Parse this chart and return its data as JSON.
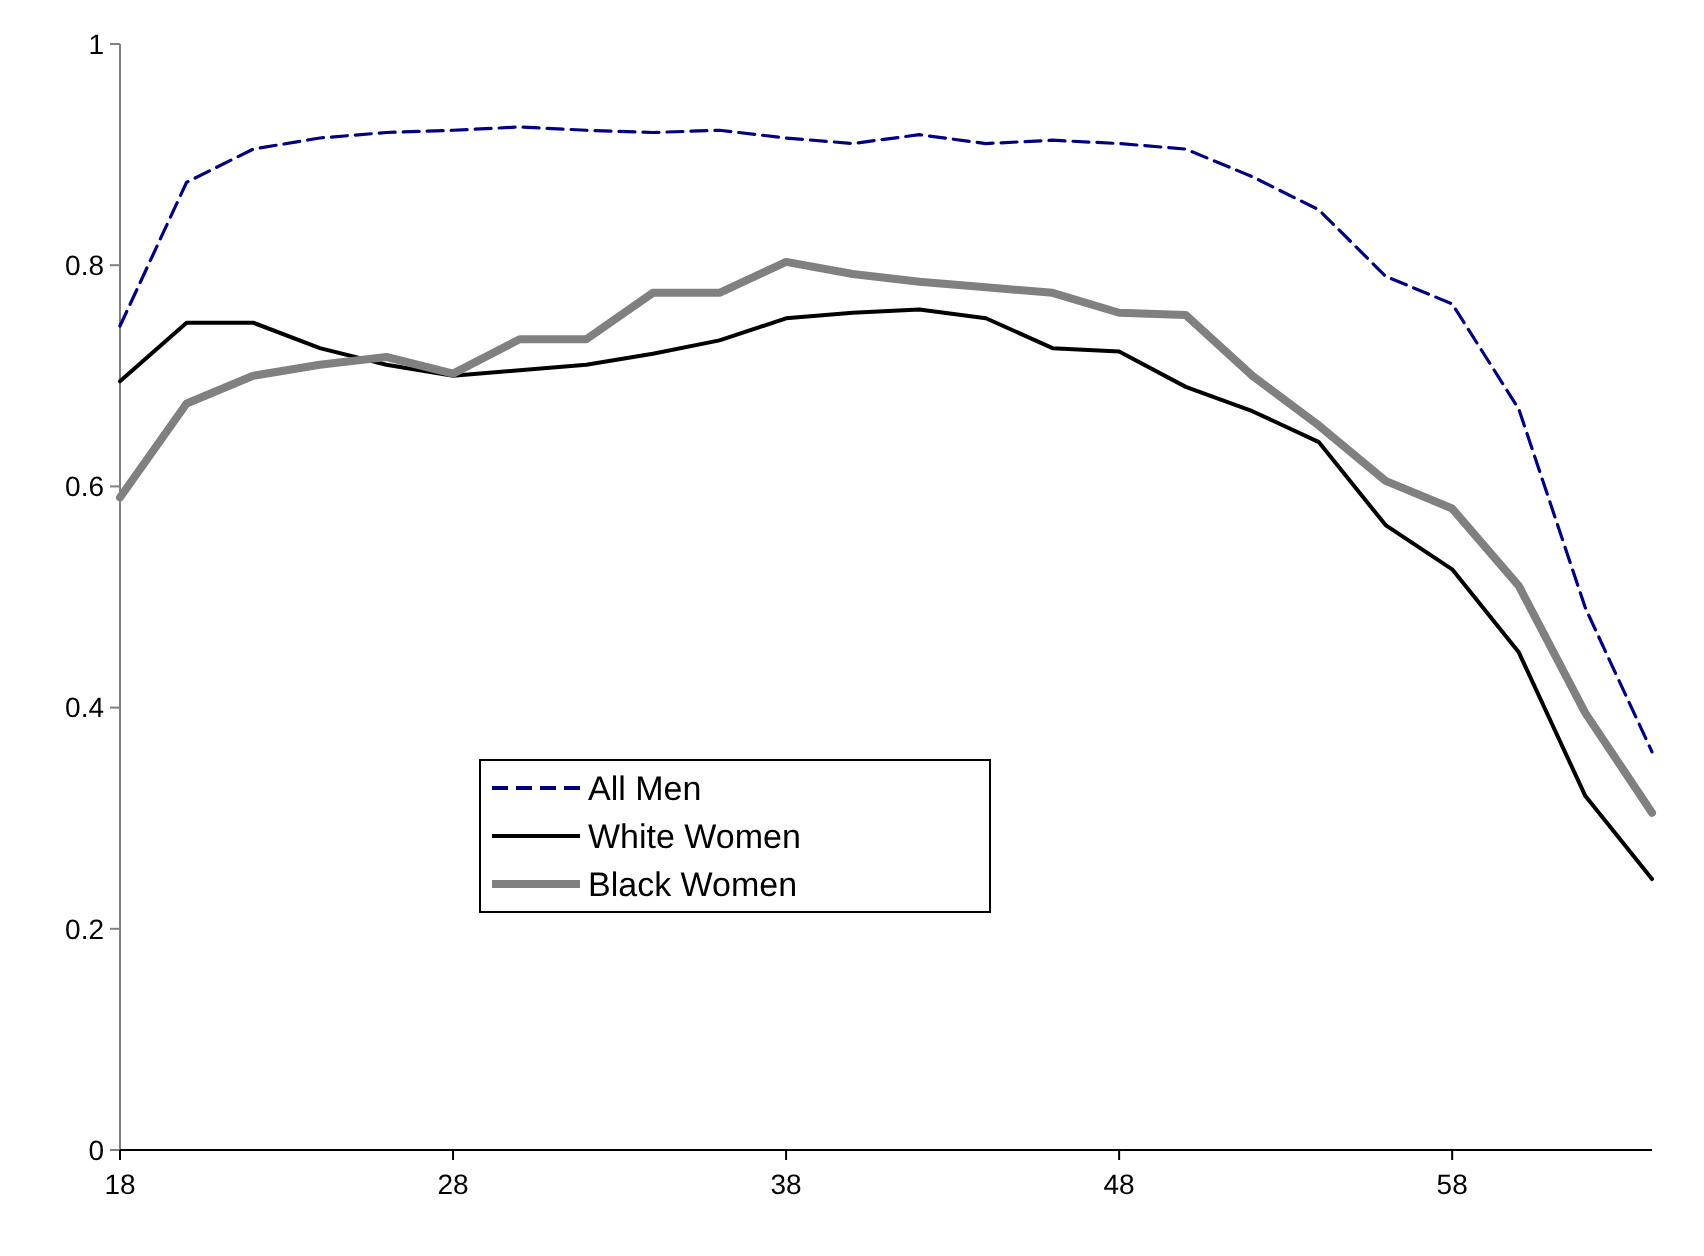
{
  "chart_data": {
    "type": "line",
    "x": [
      18,
      20,
      22,
      24,
      26,
      28,
      30,
      32,
      34,
      36,
      38,
      40,
      42,
      44,
      46,
      48,
      50,
      52,
      54,
      56,
      58,
      60,
      62,
      64
    ],
    "xlim": [
      18,
      64
    ],
    "xticks": [
      18,
      28,
      38,
      48,
      58
    ],
    "ylim": [
      0,
      1
    ],
    "yticks": [
      0,
      0.2,
      0.4,
      0.6,
      0.8,
      1
    ],
    "grid": false,
    "legend": "left",
    "series": [
      {
        "name": "All Men",
        "color": "#000080",
        "line_style": "dashed",
        "values": [
          0.745,
          0.875,
          0.905,
          0.915,
          0.92,
          0.922,
          0.925,
          0.922,
          0.92,
          0.922,
          0.915,
          0.91,
          0.918,
          0.91,
          0.913,
          0.91,
          0.905,
          0.88,
          0.85,
          0.79,
          0.765,
          0.67,
          0.49,
          0.36
        ]
      },
      {
        "name": "White Women",
        "color": "#000000",
        "line_style": "solid",
        "values": [
          0.695,
          0.748,
          0.748,
          0.725,
          0.71,
          0.7,
          0.705,
          0.71,
          0.72,
          0.732,
          0.752,
          0.757,
          0.76,
          0.752,
          0.725,
          0.722,
          0.69,
          0.668,
          0.64,
          0.565,
          0.525,
          0.45,
          0.32,
          0.245
        ]
      },
      {
        "name": "Black Women",
        "color": "#808080",
        "line_style": "solid",
        "values": [
          0.59,
          0.675,
          0.7,
          0.71,
          0.717,
          0.702,
          0.733,
          0.733,
          0.775,
          0.775,
          0.803,
          0.792,
          0.785,
          0.78,
          0.775,
          0.757,
          0.755,
          0.7,
          0.655,
          0.605,
          0.58,
          0.51,
          0.395,
          0.305
        ]
      }
    ]
  }
}
